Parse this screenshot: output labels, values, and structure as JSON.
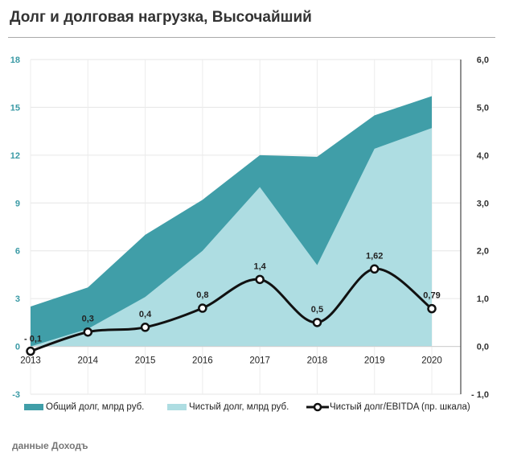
{
  "title": "Долг и долговая нагрузка, Высочайший",
  "source": "данные Доходъ",
  "colors": {
    "total": "#409ea8",
    "net": "#aedde2",
    "ratio": "#111111",
    "left_axis": "#3a9aa5"
  },
  "chart_data": {
    "type": "area",
    "categories": [
      "2013",
      "2014",
      "2015",
      "2016",
      "2017",
      "2018",
      "2019",
      "2020"
    ],
    "ylim": [
      -3,
      18
    ],
    "yticks": [
      "-3",
      "0",
      "3",
      "6",
      "9",
      "12",
      "15",
      "18"
    ],
    "y2lim": [
      -1.0,
      6.0
    ],
    "y2ticks": [
      "- 1,0",
      "0,0",
      "1,0",
      "2,0",
      "3,0",
      "4,0",
      "5,0",
      "6,0"
    ],
    "grid": true,
    "legend": "bottom",
    "series": [
      {
        "name": "Общий долг, млрд руб.",
        "type": "area",
        "axis": "left",
        "values": [
          2.5,
          3.7,
          7.0,
          9.2,
          12.0,
          11.9,
          14.5,
          15.7
        ]
      },
      {
        "name": "Чистый долг, млрд руб.",
        "type": "area",
        "axis": "left",
        "values": [
          0.0,
          1.1,
          3.1,
          6.0,
          10.0,
          5.1,
          12.4,
          13.7
        ]
      },
      {
        "name": "Чистый долг/EBITDA (пр. шкала)",
        "type": "line",
        "axis": "right",
        "smooth": true,
        "values": [
          -0.1,
          0.3,
          0.4,
          0.8,
          1.4,
          0.5,
          1.62,
          0.79
        ],
        "labels": [
          "- 0,1",
          "0,3",
          "0,4",
          "0,8",
          "1,4",
          "0,5",
          "1,62",
          "0,79"
        ]
      }
    ]
  }
}
